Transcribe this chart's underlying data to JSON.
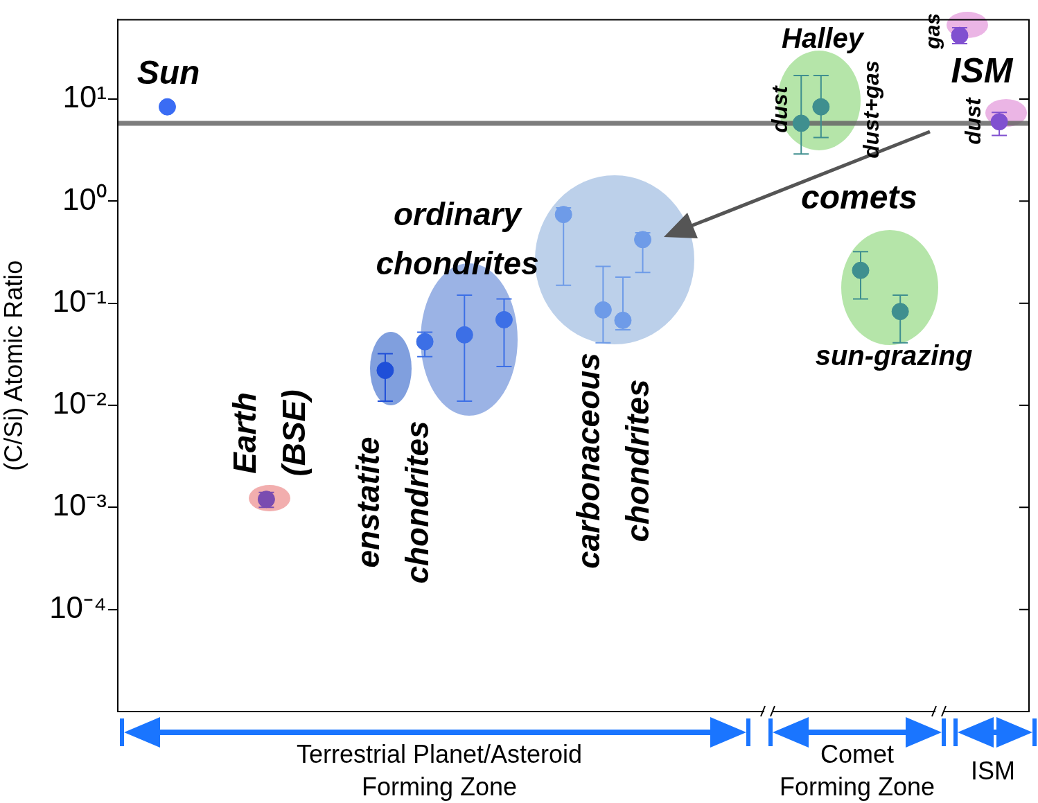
{
  "chart_data": {
    "type": "scatter",
    "ylabel": "(C/Si) Atomic Ratio",
    "log": "y",
    "marker": "circle",
    "legend": false,
    "grid": false,
    "tick_labels": "y",
    "ylim": [
      1e-05,
      60
    ],
    "yticks": [
      {
        "value": 0.0001,
        "label": "10⁻⁴"
      },
      {
        "value": 0.001,
        "label": "10⁻³"
      },
      {
        "value": 0.01,
        "label": "10⁻²"
      },
      {
        "value": 0.1,
        "label": "10⁻¹"
      },
      {
        "value": 1,
        "label": "10⁰"
      },
      {
        "value": 10,
        "label": "10¹"
      }
    ],
    "categories": [
      null,
      null,
      null,
      null,
      null,
      null,
      null,
      null,
      null,
      null,
      null,
      null,
      null,
      null,
      null,
      null,
      null,
      null,
      null,
      null,
      null,
      null,
      null,
      null,
      null,
      null,
      null,
      null,
      null,
      null,
      null,
      null,
      null,
      null,
      null,
      null,
      null,
      null,
      null,
      null,
      null,
      null,
      null,
      null,
      null,
      null
    ],
    "series": [
      {
        "color": "#3a6cf4",
        "values": [
          null,
          null,
          8.4,
          null,
          null,
          null,
          null,
          null,
          null,
          null,
          null,
          null,
          null,
          null,
          null,
          null,
          null,
          null,
          null,
          null,
          null,
          null,
          null,
          null,
          null,
          null,
          null,
          null,
          null,
          null,
          null,
          null,
          null,
          null,
          null,
          null,
          null,
          null,
          null,
          null,
          null,
          null,
          null,
          null,
          null,
          null
        ]
      },
      {
        "color": "#7a4cb0",
        "values": [
          null,
          null,
          null,
          null,
          null,
          null,
          null,
          0.0012,
          null,
          null,
          null,
          null,
          null,
          null,
          null,
          null,
          null,
          null,
          null,
          null,
          null,
          null,
          null,
          null,
          null,
          null,
          null,
          null,
          null,
          null,
          null,
          null,
          null,
          null,
          null,
          null,
          null,
          null,
          null,
          null,
          null,
          null,
          null,
          null,
          null,
          null
        ],
        "errors": [
          null,
          null,
          null,
          null,
          null,
          null,
          null,
          [
            0.001,
            0.0014
          ],
          null,
          null,
          null,
          null,
          null,
          null,
          null,
          null,
          null,
          null,
          null,
          null,
          null,
          null,
          null,
          null,
          null,
          null,
          null,
          null,
          null,
          null,
          null,
          null,
          null,
          null,
          null,
          null,
          null,
          null,
          null,
          null,
          null,
          null,
          null,
          null,
          null,
          null
        ]
      },
      {
        "color": "#1f4fd8",
        "values": [
          null,
          null,
          null,
          null,
          null,
          null,
          null,
          null,
          null,
          null,
          null,
          null,
          null,
          0.022,
          null,
          null,
          null,
          null,
          null,
          null,
          null,
          null,
          null,
          null,
          null,
          null,
          null,
          null,
          null,
          null,
          null,
          null,
          null,
          null,
          null,
          null,
          null,
          null,
          null,
          null,
          null,
          null,
          null,
          null,
          null,
          null
        ],
        "errors": [
          null,
          null,
          null,
          null,
          null,
          null,
          null,
          null,
          null,
          null,
          null,
          null,
          null,
          [
            0.011,
            0.032
          ],
          null,
          null,
          null,
          null,
          null,
          null,
          null,
          null,
          null,
          null,
          null,
          null,
          null,
          null,
          null,
          null,
          null,
          null,
          null,
          null,
          null,
          null,
          null,
          null,
          null,
          null,
          null,
          null,
          null,
          null,
          null,
          null
        ]
      },
      {
        "color": "#3c6fe6",
        "values": [
          null,
          null,
          null,
          null,
          null,
          null,
          null,
          null,
          null,
          null,
          null,
          null,
          null,
          null,
          null,
          0.042,
          null,
          0.049,
          null,
          0.069,
          null,
          null,
          null,
          null,
          null,
          null,
          null,
          null,
          null,
          null,
          null,
          null,
          null,
          null,
          null,
          null,
          null,
          null,
          null,
          null,
          null,
          null,
          null,
          null,
          null,
          null
        ],
        "errors": [
          null,
          null,
          null,
          null,
          null,
          null,
          null,
          null,
          null,
          null,
          null,
          null,
          null,
          null,
          null,
          [
            0.03,
            0.052
          ],
          null,
          [
            0.011,
            0.12
          ],
          null,
          [
            0.024,
            0.11
          ],
          null,
          null,
          null,
          null,
          null,
          null,
          null,
          null,
          null,
          null,
          null,
          null,
          null,
          null,
          null,
          null,
          null,
          null,
          null,
          null,
          null,
          null,
          null,
          null,
          null,
          null
        ]
      },
      {
        "color": "#6e9be8",
        "values": [
          null,
          null,
          null,
          null,
          null,
          null,
          null,
          null,
          null,
          null,
          null,
          null,
          null,
          null,
          null,
          null,
          null,
          null,
          null,
          null,
          null,
          null,
          0.74,
          null,
          0.086,
          0.068,
          0.42,
          null,
          null,
          null,
          null,
          null,
          null,
          null,
          null,
          null,
          null,
          null,
          null,
          null,
          null,
          null,
          null,
          null,
          null,
          null
        ],
        "errors": [
          null,
          null,
          null,
          null,
          null,
          null,
          null,
          null,
          null,
          null,
          null,
          null,
          null,
          null,
          null,
          null,
          null,
          null,
          null,
          null,
          null,
          null,
          [
            0.15,
            0.86
          ],
          null,
          [
            0.041,
            0.23
          ],
          [
            0.055,
            0.18
          ],
          [
            0.2,
            0.49
          ],
          null,
          null,
          null,
          null,
          null,
          null,
          null,
          null,
          null,
          null,
          null,
          null,
          null,
          null,
          null,
          null,
          null,
          null,
          null
        ]
      },
      {
        "color": "#3f8f8f",
        "values": [
          null,
          null,
          null,
          null,
          null,
          null,
          null,
          null,
          null,
          null,
          null,
          null,
          null,
          null,
          null,
          null,
          null,
          null,
          null,
          null,
          null,
          null,
          null,
          null,
          null,
          null,
          null,
          null,
          null,
          null,
          null,
          null,
          null,
          null,
          5.8,
          8.4,
          null,
          0.21,
          null,
          0.083,
          null,
          null,
          null,
          null,
          null,
          null
        ],
        "errors": [
          null,
          null,
          null,
          null,
          null,
          null,
          null,
          null,
          null,
          null,
          null,
          null,
          null,
          null,
          null,
          null,
          null,
          null,
          null,
          null,
          null,
          null,
          null,
          null,
          null,
          null,
          null,
          null,
          null,
          null,
          null,
          null,
          null,
          null,
          [
            2.9,
            17
          ],
          [
            4.2,
            17
          ],
          null,
          [
            0.11,
            0.32
          ],
          null,
          [
            0.041,
            0.12
          ],
          null,
          null,
          null,
          null,
          null,
          null
        ]
      },
      {
        "color": "#8050d0",
        "values": [
          null,
          null,
          null,
          null,
          null,
          null,
          null,
          null,
          null,
          null,
          null,
          null,
          null,
          null,
          null,
          null,
          null,
          null,
          null,
          null,
          null,
          null,
          null,
          null,
          null,
          null,
          null,
          null,
          null,
          null,
          null,
          null,
          null,
          null,
          null,
          null,
          null,
          null,
          null,
          null,
          null,
          null,
          42,
          null,
          6.0,
          null
        ],
        "errors": [
          null,
          null,
          null,
          null,
          null,
          null,
          null,
          null,
          null,
          null,
          null,
          null,
          null,
          null,
          null,
          null,
          null,
          null,
          null,
          null,
          null,
          null,
          null,
          null,
          null,
          null,
          null,
          null,
          null,
          null,
          null,
          null,
          null,
          null,
          null,
          null,
          null,
          null,
          null,
          null,
          null,
          null,
          [
            35,
            50
          ],
          null,
          [
            4.4,
            7.4
          ],
          null
        ]
      }
    ],
    "ref_lines": [
      {
        "axis": "y",
        "value": 5.8,
        "color": "#666666"
      }
    ],
    "annotations": [
      "Sun",
      "Earth (BSE)",
      "enstatite chondrites",
      "ordinary chondrites",
      "carbonaceous chondrites",
      "Halley",
      "dust",
      "dust+gas",
      "comets",
      "sun-grazing",
      "gas",
      "ISM",
      "dust",
      "Terrestrial Planet/Asteroid Forming Zone",
      "Comet Forming Zone",
      "ISM"
    ]
  }
}
